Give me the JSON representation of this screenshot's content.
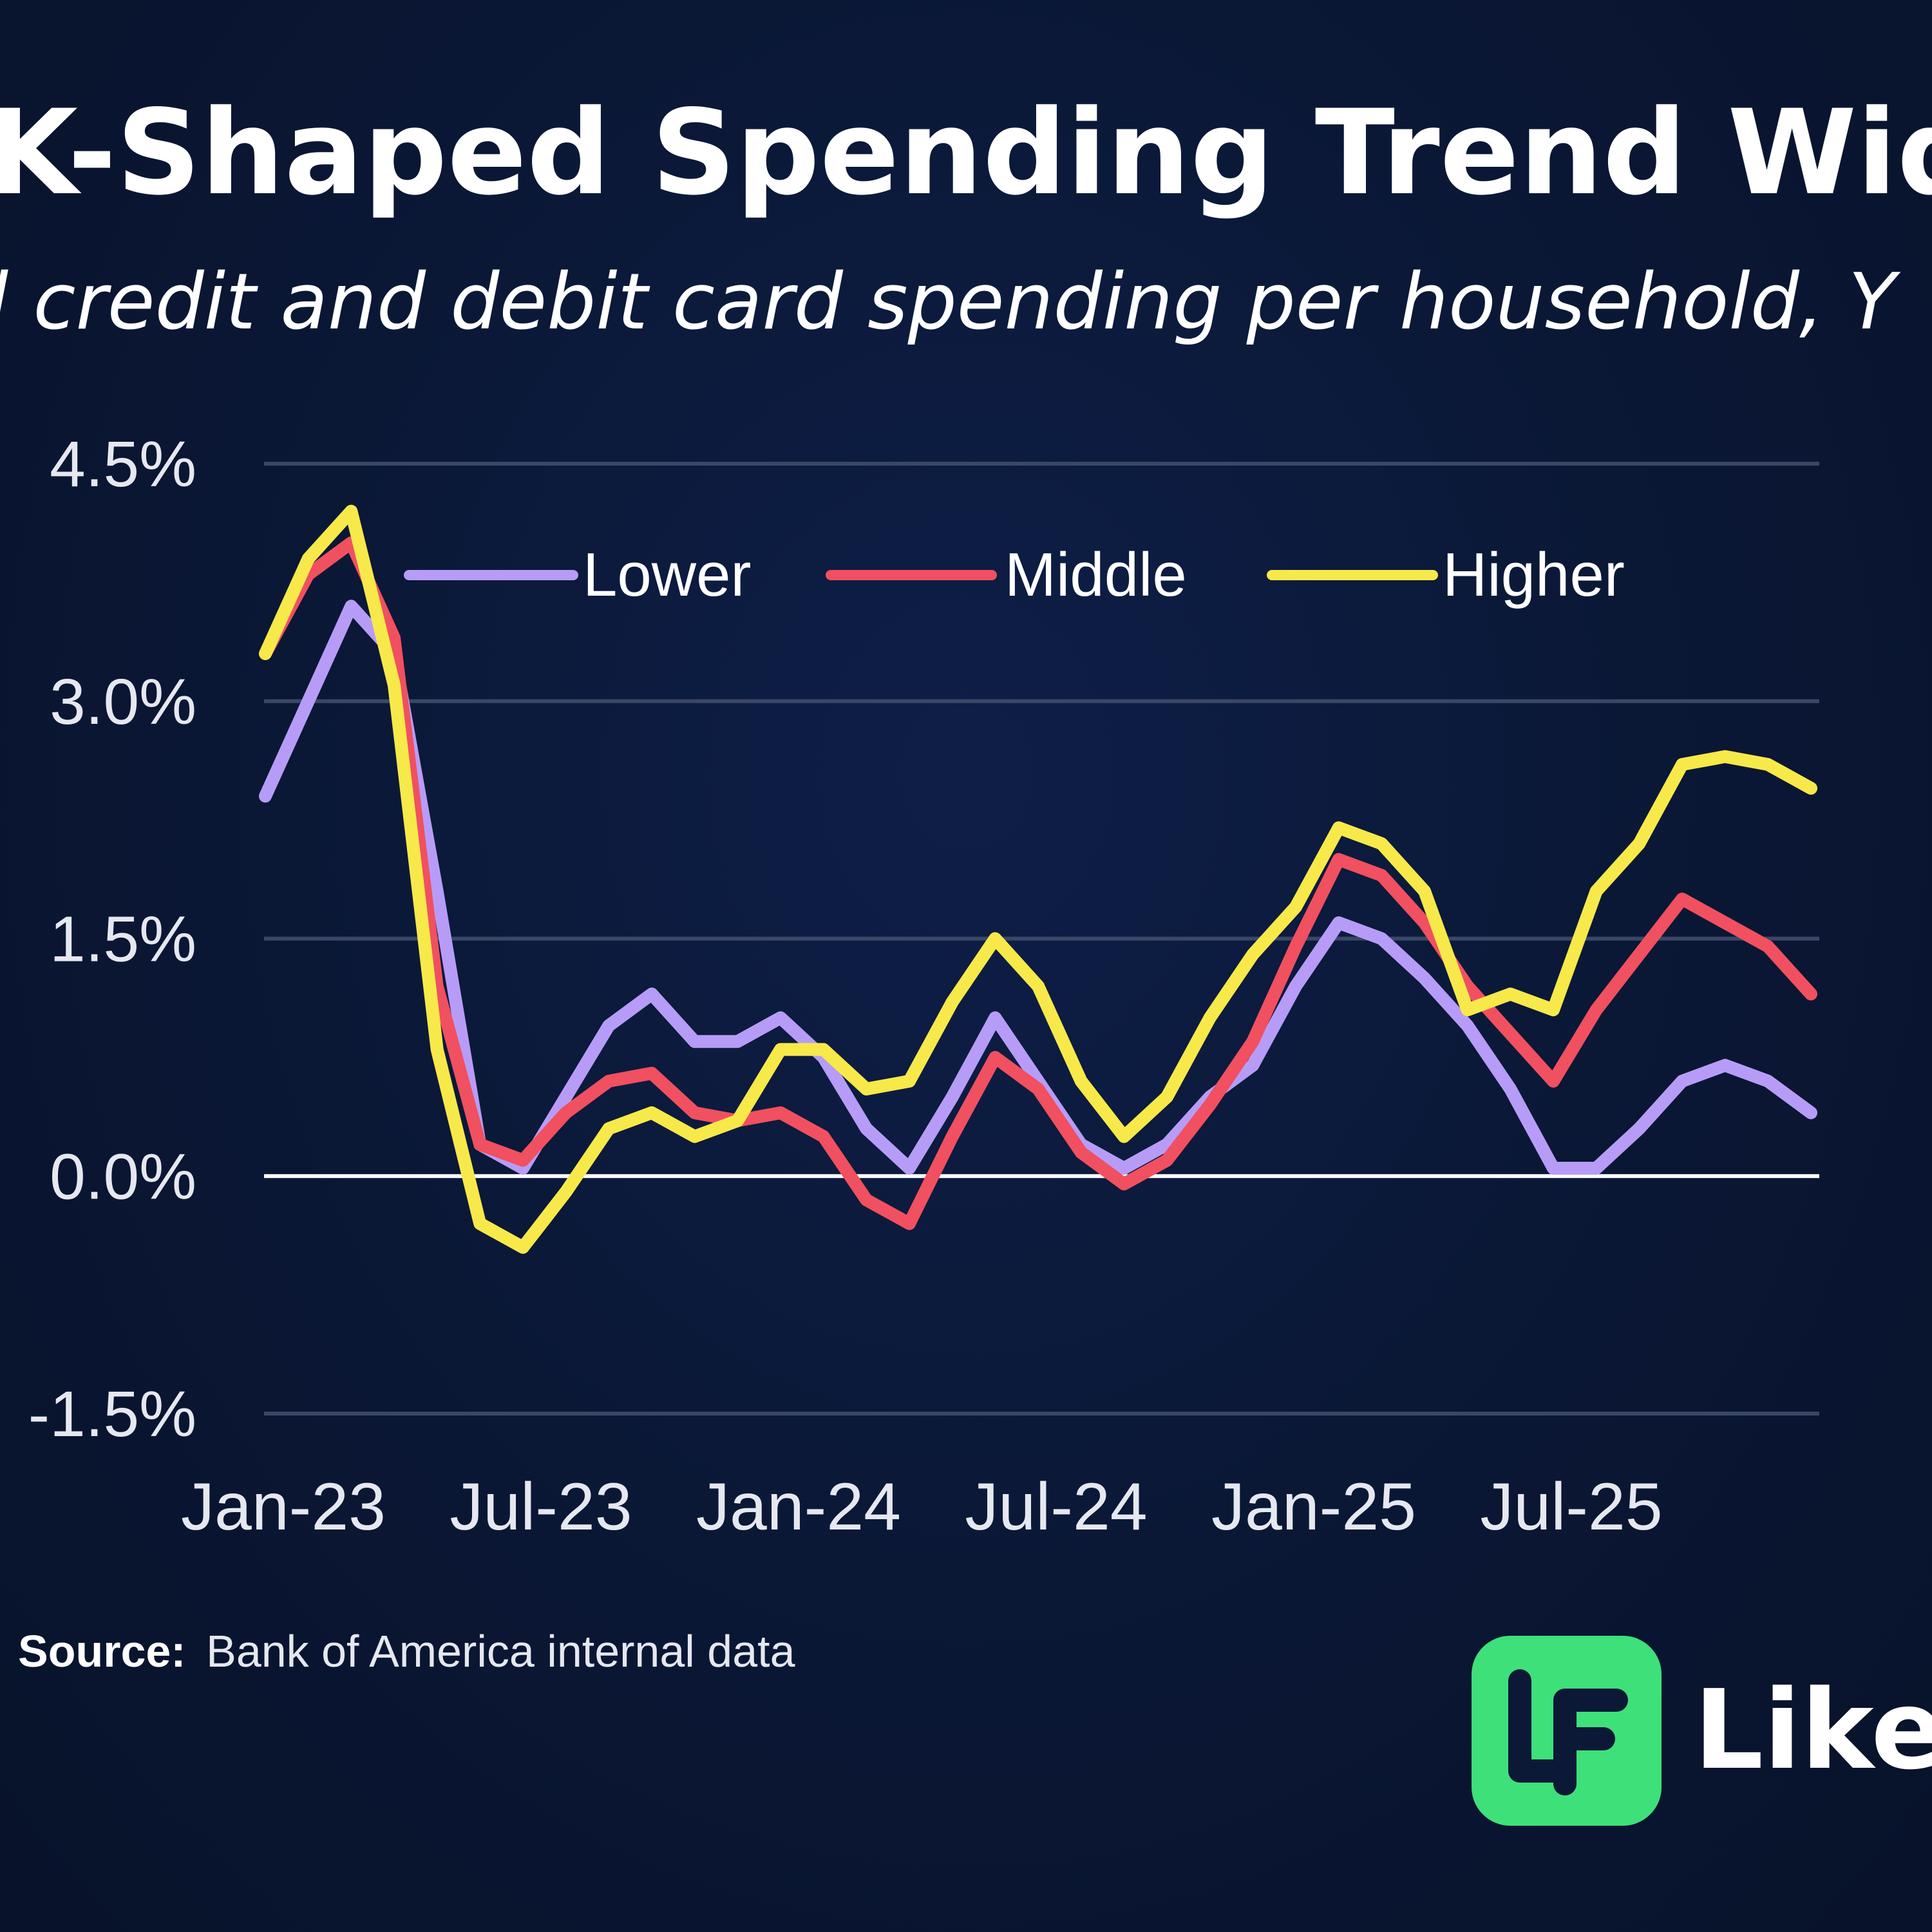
{
  "chart_data": {
    "type": "line",
    "title": "K-Shaped Spending Trend Widens",
    "subtitle": "l credit and debit card spending per household, Y",
    "xlabel": "",
    "ylabel": "",
    "ylim": [
      -1.5,
      4.5
    ],
    "yticks": [
      "4.5%",
      "3.0%",
      "1.5%",
      "0.0%",
      "-1.5%"
    ],
    "ytick_values": [
      4.5,
      3.0,
      1.5,
      0.0,
      -1.5
    ],
    "xticks": [
      {
        "label": "Jan-23",
        "index": 0
      },
      {
        "label": "Jul-23",
        "index": 6
      },
      {
        "label": "Jan-24",
        "index": 12
      },
      {
        "label": "Jul-24",
        "index": 18
      },
      {
        "label": "Jan-25",
        "index": 24
      },
      {
        "label": "Jul-25",
        "index": 30
      }
    ],
    "categories": [
      "Jan-23",
      "Feb-23",
      "Mar-23",
      "Apr-23",
      "May-23",
      "Jun-23",
      "Jul-23",
      "Aug-23",
      "Sep-23",
      "Oct-23",
      "Nov-23",
      "Dec-23",
      "Jan-24",
      "Feb-24",
      "Mar-24",
      "Apr-24",
      "May-24",
      "Jun-24",
      "Jul-24",
      "Aug-24",
      "Sep-24",
      "Oct-24",
      "Nov-24",
      "Dec-24",
      "Jan-25",
      "Feb-25",
      "Mar-25",
      "Apr-25",
      "May-25",
      "Jun-25",
      "Jul-25",
      "Aug-25",
      "Sep-25",
      "Oct-25",
      "Nov-25",
      "Dec-25",
      "Jan-26"
    ],
    "grid": true,
    "legend_position": "top",
    "series": [
      {
        "name": "Lower",
        "color": "#b79cf7",
        "values": [
          2.4,
          3.0,
          3.6,
          3.3,
          1.8,
          0.2,
          0.05,
          0.5,
          0.95,
          1.15,
          0.85,
          0.85,
          1.0,
          0.75,
          0.3,
          0.05,
          0.5,
          1.0,
          0.6,
          0.2,
          0.05,
          0.2,
          0.5,
          0.7,
          1.2,
          1.6,
          1.5,
          1.25,
          0.95,
          0.55,
          0.05,
          0.05,
          0.3,
          0.6,
          0.7,
          0.6,
          0.4
        ]
      },
      {
        "name": "Middle",
        "color": "#f0505f",
        "values": [
          3.3,
          3.8,
          4.0,
          3.4,
          1.2,
          0.2,
          0.1,
          0.4,
          0.6,
          0.65,
          0.4,
          0.35,
          0.4,
          0.25,
          -0.15,
          -0.3,
          0.25,
          0.75,
          0.55,
          0.15,
          -0.05,
          0.1,
          0.45,
          0.85,
          1.45,
          2.0,
          1.9,
          1.6,
          1.2,
          0.9,
          0.6,
          1.05,
          1.4,
          1.75,
          1.6,
          1.45,
          1.15
        ]
      },
      {
        "name": "Higher",
        "color": "#f7e94a",
        "values": [
          3.3,
          3.9,
          4.2,
          3.1,
          0.8,
          -0.3,
          -0.45,
          -0.1,
          0.3,
          0.4,
          0.25,
          0.35,
          0.8,
          0.8,
          0.55,
          0.6,
          1.1,
          1.5,
          1.2,
          0.6,
          0.25,
          0.5,
          1.0,
          1.4,
          1.7,
          2.2,
          2.1,
          1.8,
          1.05,
          1.15,
          1.05,
          1.8,
          2.1,
          2.6,
          2.65,
          2.6,
          2.45
        ]
      }
    ],
    "source_label": "Source:",
    "source_text": "Bank of America internal data"
  },
  "brand": {
    "name": "LikeF",
    "logo_color": "#3ee07a"
  },
  "colors": {
    "background": "#0b1836",
    "grid": "#3a4766",
    "zero_line": "#ffffff"
  }
}
